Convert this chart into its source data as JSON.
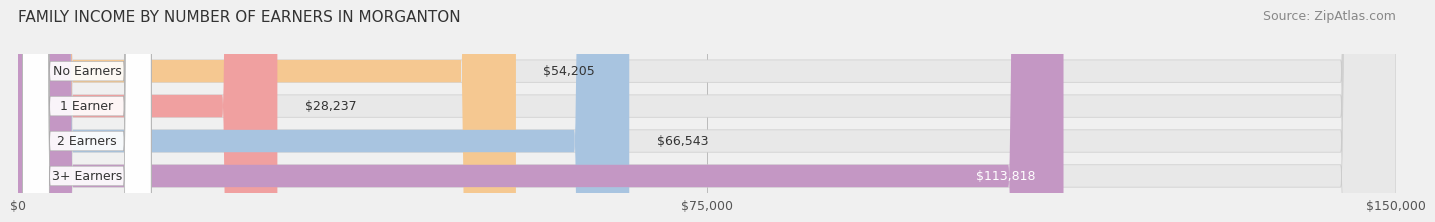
{
  "title": "FAMILY INCOME BY NUMBER OF EARNERS IN MORGANTON",
  "source": "Source: ZipAtlas.com",
  "categories": [
    "No Earners",
    "1 Earner",
    "2 Earners",
    "3+ Earners"
  ],
  "values": [
    54205,
    28237,
    66543,
    113818
  ],
  "bar_colors": [
    "#f5c891",
    "#f0a0a0",
    "#a8c4e0",
    "#c497c4"
  ],
  "label_colors": [
    "#333333",
    "#333333",
    "#333333",
    "#ffffff"
  ],
  "xlim": [
    0,
    150000
  ],
  "xticks": [
    0,
    75000,
    150000
  ],
  "xtick_labels": [
    "$0",
    "$75,000",
    "$150,000"
  ],
  "background_color": "#f0f0f0",
  "bar_background_color": "#e8e8e8",
  "title_fontsize": 11,
  "source_fontsize": 9,
  "label_fontsize": 9,
  "tick_fontsize": 9,
  "category_fontsize": 9
}
